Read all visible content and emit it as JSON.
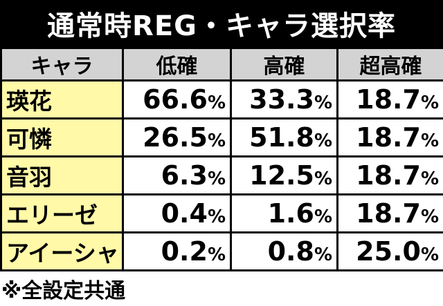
{
  "title": "通常時REG・キャラ選択率",
  "headers": [
    "キャラ",
    "低確",
    "高確",
    "超高確"
  ],
  "rows": [
    {
      "name": "瑛花",
      "low": "66.6",
      "high": "33.3",
      "super": "18.7"
    },
    {
      "name": "可憐",
      "low": "26.5",
      "high": "51.8",
      "super": "18.7"
    },
    {
      "name": "音羽",
      "low": "6.3",
      "high": "12.5",
      "super": "18.7"
    },
    {
      "name": "エリーゼ",
      "low": "0.4",
      "high": "1.6",
      "super": "18.7"
    },
    {
      "name": "アイーシャ",
      "low": "0.2",
      "high": "0.8",
      "super": "25.0"
    }
  ],
  "unit": "%",
  "footnote": "※全設定共通",
  "colors": {
    "title_bg": "#000000",
    "header_bg": "#d3d3d3",
    "name_bg": "#fff9a8"
  }
}
